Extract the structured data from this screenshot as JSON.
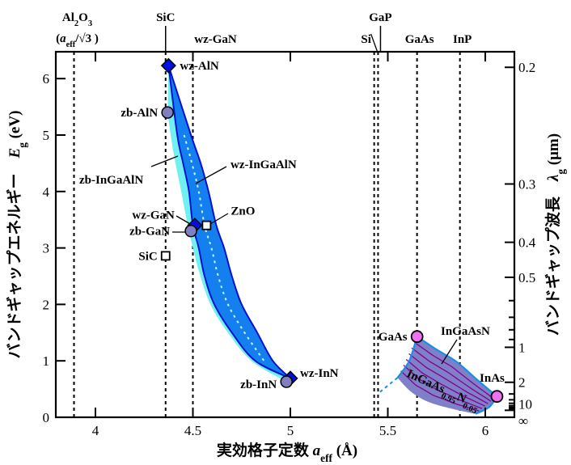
{
  "chart_data": {
    "type": "scatter",
    "title": "",
    "xlabel": [
      {
        "t": "実効格子定数 "
      },
      {
        "t": "a",
        "i": true
      },
      {
        "t": "eff",
        "sub": true
      },
      {
        "t": " (Å)"
      }
    ],
    "ylabel": [
      {
        "t": "バンドギャップエネルギー　"
      },
      {
        "t": "E",
        "i": true
      },
      {
        "t": "g",
        "sub": true
      },
      {
        "t": " (eV)"
      }
    ],
    "y2label": [
      {
        "t": "バンドギャップ波長　"
      },
      {
        "t": "λ",
        "i": true
      },
      {
        "t": "g",
        "sub": true
      },
      {
        "t": " (μm)"
      }
    ],
    "xlim": [
      3.8,
      6.15
    ],
    "ylim": [
      0,
      6.5
    ],
    "xticks": [
      {
        "v": 4,
        "label": "4"
      },
      {
        "v": 4.5,
        "label": "4.5"
      },
      {
        "v": 5,
        "label": "5"
      },
      {
        "v": 5.5,
        "label": "5.5"
      },
      {
        "v": 6,
        "label": "6"
      }
    ],
    "yticks": [
      {
        "v": 0,
        "label": "0"
      },
      {
        "v": 1,
        "label": "1"
      },
      {
        "v": 2,
        "label": "2"
      },
      {
        "v": 3,
        "label": "3"
      },
      {
        "v": 4,
        "label": "4"
      },
      {
        "v": 5,
        "label": "5"
      },
      {
        "v": 6,
        "label": "6"
      }
    ],
    "y2ticks_wavelength_um": [
      {
        "v": 0.2,
        "label": "0.2"
      },
      {
        "v": 0.3,
        "label": "0.3"
      },
      {
        "v": 0.4,
        "label": "0.4"
      },
      {
        "v": 0.5,
        "label": "0.5"
      },
      {
        "v": 0.6
      },
      {
        "v": 0.7
      },
      {
        "v": 0.8
      },
      {
        "v": 0.9
      },
      {
        "v": 1,
        "label": "1"
      },
      {
        "v": 2,
        "label": "2"
      },
      {
        "v": 3
      },
      {
        "v": 4
      },
      {
        "v": 5
      },
      {
        "v": 6
      },
      {
        "v": 7
      },
      {
        "v": 8
      },
      {
        "v": 9
      },
      {
        "v": 10,
        "label": "10"
      },
      {
        "v": "inf",
        "label": "∞"
      }
    ],
    "substrate_lines": [
      {
        "name": "Al2O3",
        "a": 3.89,
        "label": [
          {
            "t": "Al"
          },
          {
            "t": "2",
            "sub": true
          },
          {
            "t": "O"
          },
          {
            "t": "3",
            "sub": true
          }
        ],
        "label2": [
          {
            "t": "("
          },
          {
            "t": "a",
            "i": true
          },
          {
            "t": "eff",
            "sub": true
          },
          {
            "t": "/√3 )"
          }
        ]
      },
      {
        "name": "SiC",
        "a": 4.36,
        "label": [
          {
            "t": "SiC"
          }
        ],
        "row": "top",
        "pointer": "straight"
      },
      {
        "name": "wz-GaN",
        "a": 4.5,
        "label": [
          {
            "t": "wz-GaN"
          }
        ],
        "row": "bottom"
      },
      {
        "name": "Si",
        "a": 5.43,
        "label": [
          {
            "t": "Si"
          }
        ],
        "row": "bottom",
        "pointer": "slant"
      },
      {
        "name": "GaP",
        "a": 5.45,
        "label": [
          {
            "t": "GaP"
          }
        ],
        "row": "top",
        "pointer": "straight"
      },
      {
        "name": "GaAs",
        "a": 5.65,
        "label": [
          {
            "t": "GaAs"
          }
        ],
        "row": "bottom"
      },
      {
        "name": "InP",
        "a": 5.87,
        "label": [
          {
            "t": "InP"
          }
        ],
        "row": "bottom"
      }
    ],
    "points": [
      {
        "name": "wz-AlN",
        "a": 4.375,
        "Eg": 6.23,
        "marker": "diamond",
        "label": "wz-AlN"
      },
      {
        "name": "zb-AlN",
        "a": 4.37,
        "Eg": 5.4,
        "marker": "circle",
        "label": "zb-AlN"
      },
      {
        "name": "wz-GaN",
        "a": 4.51,
        "Eg": 3.4,
        "marker": "diamond",
        "label": "wz-GaN"
      },
      {
        "name": "zb-GaN",
        "a": 4.49,
        "Eg": 3.3,
        "marker": "circle",
        "label": "zb-GaN"
      },
      {
        "name": "ZnO",
        "a": 4.57,
        "Eg": 3.4,
        "marker": "square",
        "label": "ZnO"
      },
      {
        "name": "SiC",
        "a": 4.36,
        "Eg": 2.86,
        "marker": "square",
        "label": "SiC"
      },
      {
        "name": "wz-InN",
        "a": 5.0,
        "Eg": 0.69,
        "marker": "diamond",
        "label": "wz-InN"
      },
      {
        "name": "zb-InN",
        "a": 4.98,
        "Eg": 0.63,
        "marker": "circle",
        "label": "zb-InN"
      },
      {
        "name": "GaAs",
        "a": 5.65,
        "Eg": 1.43,
        "marker": "pink-circle",
        "label": "GaAs"
      },
      {
        "name": "InAs",
        "a": 6.06,
        "Eg": 0.37,
        "marker": "pink-circle",
        "label": "InAs"
      }
    ],
    "regions": {
      "wz_left": [
        [
          4.375,
          6.23
        ],
        [
          4.42,
          5.0
        ],
        [
          4.45,
          4.5
        ],
        [
          4.48,
          4.0
        ],
        [
          4.5,
          3.4
        ],
        [
          4.53,
          3.0
        ],
        [
          4.56,
          2.5
        ],
        [
          4.61,
          2.0
        ],
        [
          4.7,
          1.5
        ],
        [
          4.82,
          1.0
        ],
        [
          5.0,
          0.69
        ]
      ],
      "wz_right": [
        [
          4.375,
          6.23
        ],
        [
          4.49,
          5.0
        ],
        [
          4.54,
          4.5
        ],
        [
          4.58,
          4.0
        ],
        [
          4.62,
          3.4
        ],
        [
          4.66,
          3.0
        ],
        [
          4.7,
          2.5
        ],
        [
          4.75,
          2.0
        ],
        [
          4.83,
          1.5
        ],
        [
          4.91,
          1.0
        ],
        [
          5.0,
          0.69
        ]
      ],
      "zb_left": [
        [
          4.37,
          5.4
        ],
        [
          4.4,
          4.7
        ],
        [
          4.44,
          4.0
        ],
        [
          4.48,
          3.3
        ],
        [
          4.53,
          2.6
        ],
        [
          4.59,
          2.0
        ],
        [
          4.68,
          1.5
        ],
        [
          4.8,
          1.0
        ],
        [
          4.98,
          0.63
        ]
      ],
      "ingaasn_top": [
        [
          5.65,
          1.43
        ],
        [
          5.75,
          1.2
        ],
        [
          5.85,
          0.99
        ],
        [
          5.96,
          0.66
        ],
        [
          6.06,
          0.37
        ]
      ],
      "ingaasn_right": [
        [
          6.06,
          0.37
        ],
        [
          6.02,
          0.18
        ],
        [
          5.95,
          0.06
        ]
      ],
      "ingaasn_bottom": [
        [
          5.95,
          0.06
        ],
        [
          5.83,
          0.15
        ],
        [
          5.71,
          0.27
        ],
        [
          5.62,
          0.45
        ],
        [
          5.55,
          0.7
        ]
      ],
      "ingaasn_left": [
        [
          5.55,
          0.7
        ],
        [
          5.61,
          1.0
        ],
        [
          5.65,
          1.43
        ]
      ],
      "ingaasn_extrap": [
        [
          5.55,
          0.7
        ],
        [
          5.46,
          0.45
        ]
      ]
    },
    "annotations": {
      "wz_InGaAlN": "wz-InGaAlN",
      "zb_InGaAlN": "zb-InGaAlN",
      "InGaAsN": "InGaAsN",
      "InGaAsN_edge": [
        {
          "t": "InGaAs"
        },
        {
          "t": "0.95",
          "sub": true
        },
        {
          "t": "N"
        },
        {
          "t": "0.05",
          "sub": true
        }
      ]
    },
    "colors": {
      "wz_fill": "#1480f0",
      "wz_edge": "#0010d0",
      "zb_fill": "#70f0f0",
      "zb_point": "#8080c0",
      "diamond": "#0010e0",
      "ingaasn_fill": "#8080c8",
      "ingaasn_edge": "#1890e0",
      "ingaasn_lines": "#800090",
      "pink": "#f070f0"
    }
  }
}
